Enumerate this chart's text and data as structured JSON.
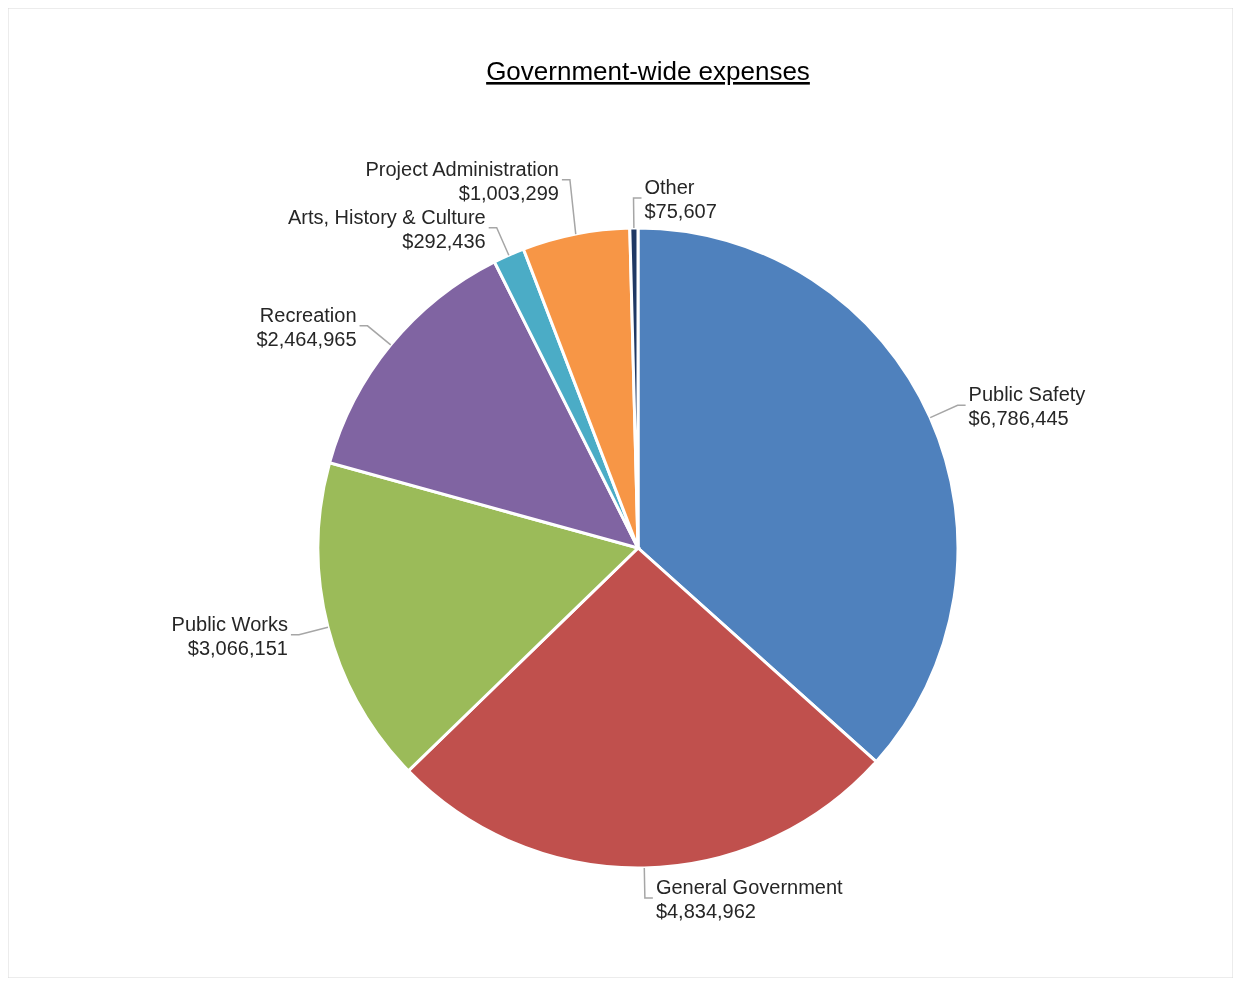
{
  "chart_data": {
    "type": "pie",
    "title": "Government-wide expenses",
    "categories": [
      "Public Safety",
      "General Government",
      "Public Works",
      "Recreation",
      "Arts, History & Culture",
      "Project Administration",
      "Other"
    ],
    "values": [
      6786445,
      4834962,
      3066151,
      2464965,
      292436,
      1003299,
      75607
    ],
    "value_labels": [
      "$6,786,445",
      "$4,834,962",
      "$3,066,151",
      "$2,464,965",
      "$292,436",
      "$1,003,299",
      "$75,607"
    ],
    "colors": [
      "#4f81bd",
      "#c0504d",
      "#9bbb59",
      "#8064a2",
      "#4bacc6",
      "#f79646",
      "#1f3864"
    ]
  }
}
